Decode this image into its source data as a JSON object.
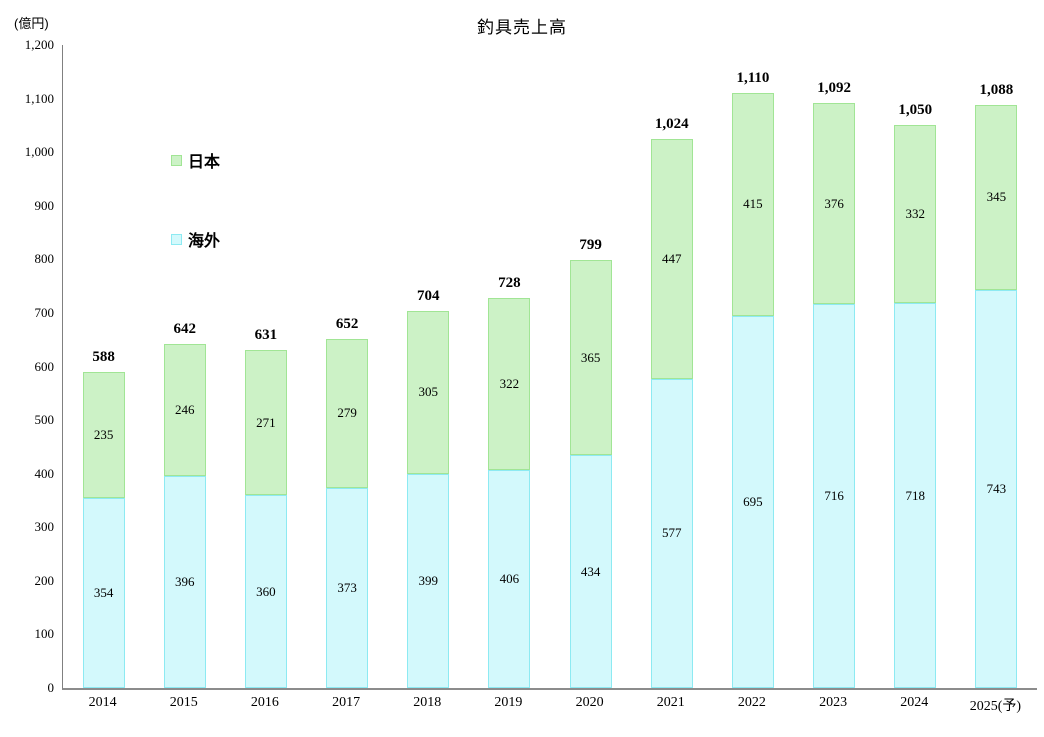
{
  "chart_data": {
    "type": "bar",
    "stacked": true,
    "title": "釣具売上高",
    "unit_label": "(億円)",
    "categories": [
      "2014",
      "2015",
      "2016",
      "2017",
      "2018",
      "2019",
      "2020",
      "2021",
      "2022",
      "2023",
      "2024",
      "2025(予)"
    ],
    "series": [
      {
        "name": "日本",
        "position": "top",
        "fill": "#ccf2c6",
        "border": "#a1e595",
        "values": [
          235,
          246,
          271,
          279,
          305,
          322,
          365,
          447,
          415,
          376,
          332,
          345
        ]
      },
      {
        "name": "海外",
        "position": "bottom",
        "fill": "#d3f9fc",
        "border": "#8deaf2",
        "values": [
          354,
          396,
          360,
          373,
          399,
          406,
          434,
          577,
          695,
          716,
          718,
          743
        ]
      }
    ],
    "totals": [
      588,
      642,
      631,
      652,
      704,
      728,
      799,
      1024,
      1110,
      1092,
      1050,
      1088
    ],
    "total_labels": [
      "588",
      "642",
      "631",
      "652",
      "704",
      "728",
      "799",
      "1,024",
      "1,110",
      "1,092",
      "1,050",
      "1,088"
    ],
    "y_ticks": [
      "0",
      "100",
      "200",
      "300",
      "400",
      "500",
      "600",
      "700",
      "800",
      "900",
      "1,000",
      "1,100",
      "1,200"
    ],
    "ylim": [
      0,
      1200
    ],
    "grid": false,
    "legend_position": "top-left-inside",
    "axis_color": "#808080",
    "text_color": "#000000"
  }
}
